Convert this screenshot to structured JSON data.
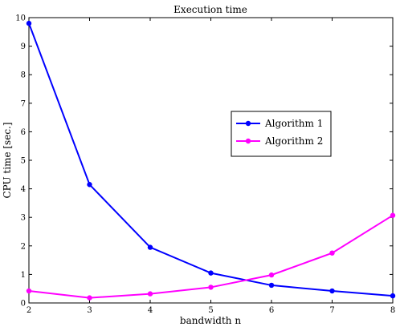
{
  "chart_data": {
    "type": "line",
    "title": "Execution time",
    "xlabel": "bandwidth n",
    "ylabel": "CPU time [sec.]",
    "x": [
      2,
      3,
      4,
      5,
      6,
      7,
      8
    ],
    "xlim": [
      2,
      8
    ],
    "ylim": [
      0,
      10
    ],
    "xticks": [
      2,
      3,
      4,
      5,
      6,
      7,
      8
    ],
    "yticks": [
      0,
      1,
      2,
      3,
      4,
      5,
      6,
      7,
      8,
      9,
      10
    ],
    "grid": false,
    "legend_position": "right-center",
    "series": [
      {
        "name": "Algorithm 1",
        "color": "#0000ff",
        "values": [
          9.8,
          4.15,
          1.95,
          1.05,
          0.62,
          0.42,
          0.25
        ]
      },
      {
        "name": "Algorithm 2",
        "color": "#ff00ff",
        "values": [
          0.42,
          0.18,
          0.32,
          0.55,
          0.98,
          1.75,
          3.07
        ]
      }
    ]
  }
}
